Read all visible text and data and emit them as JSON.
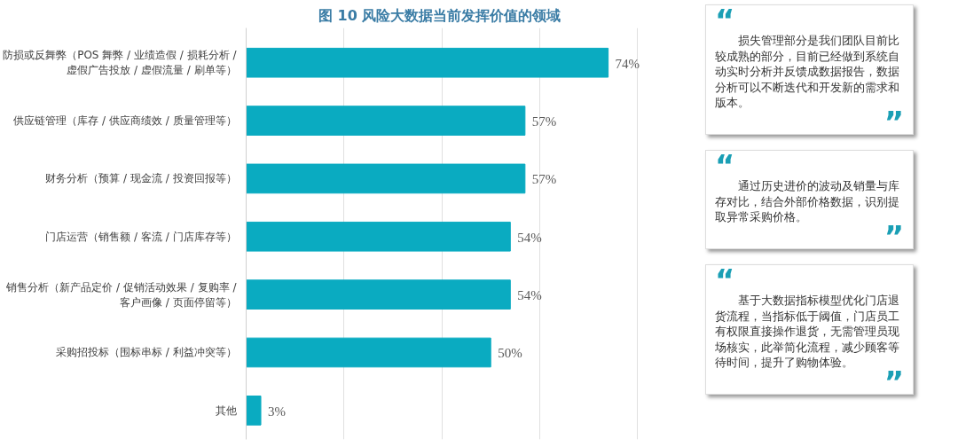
{
  "chart_data": {
    "type": "bar",
    "orientation": "horizontal",
    "title": "图 10    风险大数据当前发挥价值的领域",
    "categories": [
      "防损或反舞弊（POS 舞弊 / 业绩造假 / 损耗分析 /\n虚假广告投放 / 虚假流量 / 刷单等）",
      "供应链管理（库存 / 供应商绩效 / 质量管理等）",
      "财务分析（预算 / 现金流 / 投资回报等）",
      "门店运营（销售额 / 客流 / 门店库存等）",
      "销售分析（新产品定价 / 促销活动效果 / 复购率 /\n客户画像 / 页面停留等）",
      "采购招投标（围标串标 / 利益冲突等）",
      "其他"
    ],
    "values": [
      74,
      57,
      57,
      54,
      54,
      50,
      3
    ],
    "value_labels": [
      "74%",
      "57%",
      "57%",
      "54%",
      "54%",
      "50%",
      "3%"
    ],
    "color": "#0aabc1",
    "grid": "x",
    "tick_labels": "y",
    "annotations": [
      "“损失管理部分是我们团队目前比较成熟的部分，目前已经做到系统自动实时分析并反馈成数据报告，数据分析可以不断迭代和开发新的需求和版本。”",
      "“通过历史进价的波动及销量与库存对比，结合外部价格数据，识别提取异常采购价格。”",
      "“基于大数据指标模型优化门店退货流程，当指标低于阈值，门店员工有权限直接操作退货，无需管理员现场核实，此举简化流程，减少顾客等待时间，提升了购物体验。”"
    ]
  }
}
